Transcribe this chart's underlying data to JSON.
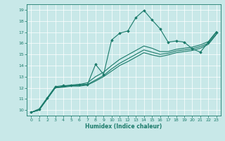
{
  "xlabel": "Humidex (Indice chaleur)",
  "background_color": "#c8e8e8",
  "line_color": "#1a7a6a",
  "xlim": [
    -0.5,
    23.5
  ],
  "ylim": [
    9.5,
    19.5
  ],
  "xticks": [
    0,
    1,
    2,
    3,
    4,
    5,
    6,
    7,
    8,
    9,
    10,
    11,
    12,
    13,
    14,
    15,
    16,
    17,
    18,
    19,
    20,
    21,
    22,
    23
  ],
  "yticks": [
    10,
    11,
    12,
    13,
    14,
    15,
    16,
    17,
    18,
    19
  ],
  "lines": [
    {
      "x": [
        0,
        1,
        2,
        3,
        4,
        5,
        6,
        7,
        8,
        9,
        10,
        11,
        12,
        13,
        14,
        15,
        16,
        17,
        18,
        19,
        20,
        21,
        22,
        23
      ],
      "y": [
        9.8,
        10.1,
        11.1,
        12.1,
        12.2,
        12.2,
        12.3,
        12.3,
        14.1,
        13.2,
        16.3,
        16.9,
        17.1,
        18.3,
        18.95,
        18.1,
        17.3,
        16.1,
        16.2,
        16.1,
        15.5,
        15.2,
        16.1,
        17.0
      ],
      "marker": "D",
      "markersize": 1.8,
      "linewidth": 0.8
    },
    {
      "x": [
        0,
        1,
        2,
        3,
        4,
        5,
        6,
        7,
        8,
        9,
        10,
        11,
        12,
        13,
        14,
        15,
        16,
        17,
        18,
        19,
        20,
        21,
        22,
        23
      ],
      "y": [
        9.8,
        10.0,
        11.0,
        12.0,
        12.1,
        12.2,
        12.2,
        12.3,
        12.7,
        13.1,
        13.7,
        14.2,
        14.6,
        15.0,
        15.4,
        15.2,
        15.0,
        15.1,
        15.3,
        15.4,
        15.5,
        15.7,
        16.0,
        16.85
      ],
      "marker": null,
      "linewidth": 0.8
    },
    {
      "x": [
        0,
        1,
        2,
        3,
        4,
        5,
        6,
        7,
        8,
        9,
        10,
        11,
        12,
        13,
        14,
        15,
        16,
        17,
        18,
        19,
        20,
        21,
        22,
        23
      ],
      "y": [
        9.8,
        10.0,
        11.0,
        12.0,
        12.15,
        12.25,
        12.3,
        12.45,
        13.0,
        13.4,
        14.0,
        14.55,
        14.95,
        15.35,
        15.75,
        15.55,
        15.25,
        15.25,
        15.45,
        15.55,
        15.65,
        15.85,
        16.15,
        17.05
      ],
      "marker": null,
      "linewidth": 0.8
    },
    {
      "x": [
        0,
        1,
        2,
        3,
        4,
        5,
        6,
        7,
        8,
        9,
        10,
        11,
        12,
        13,
        14,
        15,
        16,
        17,
        18,
        19,
        20,
        21,
        22,
        23
      ],
      "y": [
        9.8,
        10.0,
        11.0,
        12.0,
        12.05,
        12.15,
        12.15,
        12.25,
        12.6,
        13.0,
        13.5,
        14.0,
        14.35,
        14.75,
        15.15,
        14.95,
        14.8,
        14.95,
        15.15,
        15.25,
        15.35,
        15.55,
        15.9,
        16.8
      ],
      "marker": null,
      "linewidth": 0.8
    }
  ]
}
